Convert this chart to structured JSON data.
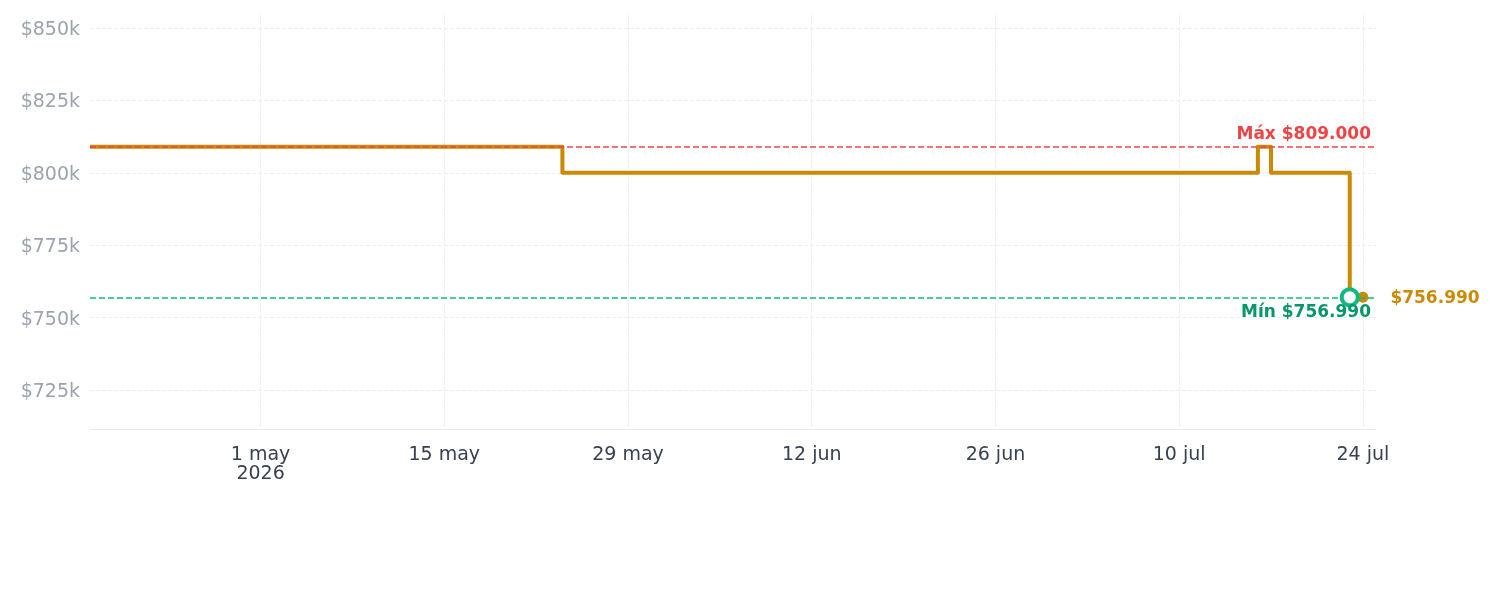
{
  "chart_data": {
    "type": "step",
    "x": [
      "2026-04-18",
      "2026-05-24",
      "2026-07-16",
      "2026-07-17",
      "2026-07-23",
      "2026-07-24"
    ],
    "series": [
      {
        "color": "#ca8a04",
        "values": [
          809000,
          800000,
          809000,
          800000,
          756990,
          756990
        ],
        "value_labels": [
          null,
          null,
          null,
          null,
          null,
          "$756.990"
        ]
      }
    ],
    "xlim": [
      "2026-04-18",
      "2026-07-25"
    ],
    "xticks": [
      {
        "value": "2026-05-01",
        "label": "1 may\n2026"
      },
      {
        "value": "2026-05-15",
        "label": "15 may"
      },
      {
        "value": "2026-05-29",
        "label": "29 may"
      },
      {
        "value": "2026-06-12",
        "label": "12 jun"
      },
      {
        "value": "2026-06-26",
        "label": "26 jun"
      },
      {
        "value": "2026-07-10",
        "label": "10 jul"
      },
      {
        "value": "2026-07-24",
        "label": "24 jul"
      }
    ],
    "ylim": [
      711500,
      854500
    ],
    "yticks": [
      {
        "value": 725000,
        "label": "$725k"
      },
      {
        "value": 750000,
        "label": "$750k"
      },
      {
        "value": 775000,
        "label": "$775k"
      },
      {
        "value": 800000,
        "label": "$800k"
      },
      {
        "value": 825000,
        "label": "$825k"
      },
      {
        "value": 850000,
        "label": "$850k"
      }
    ],
    "ref_lines": [
      {
        "axis": "y",
        "value": 809000,
        "label": "Máx $809.000",
        "color": "#ef4444",
        "line_style": "dashed"
      },
      {
        "axis": "y",
        "value": 756990,
        "label": "Mín $756.990",
        "color": "#10b981",
        "line_style": "dashed"
      }
    ],
    "grid": true,
    "marker": "none"
  }
}
